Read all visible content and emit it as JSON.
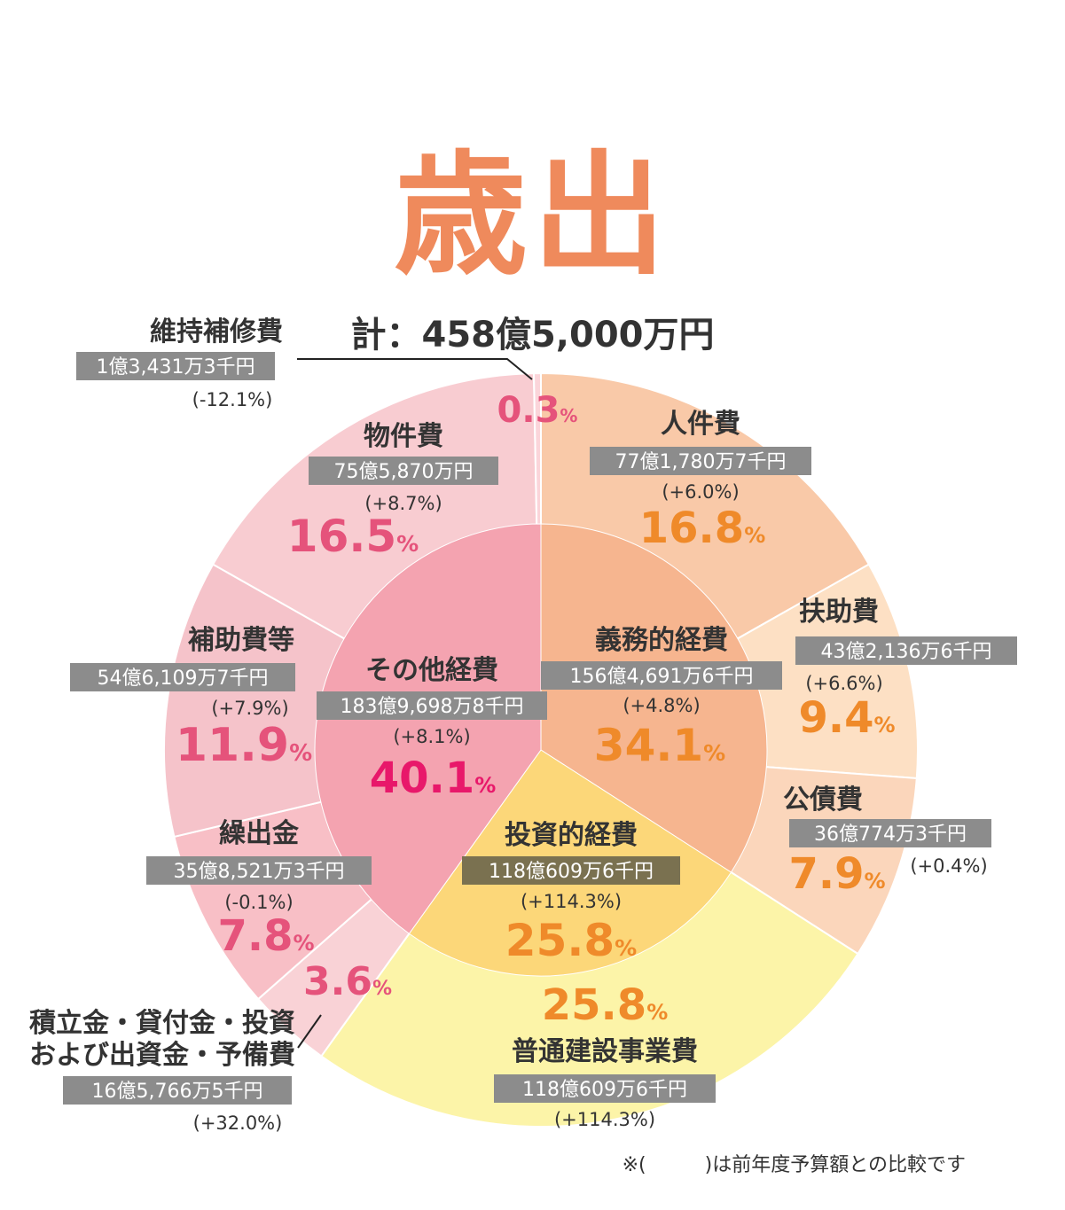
{
  "title": "歳出",
  "total": "計：458億5,000万円",
  "footnote": "※(　　　)は前年度予算額との比較です",
  "colors": {
    "outer": [
      "#f9c9a8",
      "#fde0c4",
      "#fbd6bb",
      "#fcf4a8",
      "#f9d2d6",
      "#f8bfc6",
      "#f5c3ca",
      "#f8ccd1",
      "#fbd5da"
    ],
    "inner": [
      "#f6b58f",
      "#fcd779",
      "#f4a3b0"
    ],
    "pct_orange": "#ef8a2a",
    "pct_pink": "#e5537b",
    "pct_magenta": "#e8186a",
    "amount_bg": "#8c8c8c",
    "amount_bg_dark": "#7a7150"
  },
  "chart_data": {
    "type": "pie",
    "title": "歳出",
    "total": "計：458億5,000万円",
    "outer": [
      {
        "name": "人件費",
        "amount": "77億1,780万7千円",
        "change": "(+6.0%)",
        "percent": 16.8,
        "label": "16.8"
      },
      {
        "name": "扶助費",
        "amount": "43億2,136万6千円",
        "change": "(+6.6%)",
        "percent": 9.4,
        "label": "9.4"
      },
      {
        "name": "公債費",
        "amount": "36億774万3千円",
        "change": "(+0.4%)",
        "percent": 7.9,
        "label": "7.9"
      },
      {
        "name": "普通建設事業費",
        "amount": "118億609万6千円",
        "change": "(+114.3%)",
        "percent": 25.8,
        "label": "25.8"
      },
      {
        "name": "積立金・貸付金・投資\nおよび出資金・予備費",
        "amount": "16億5,766万5千円",
        "change": "(+32.0%)",
        "percent": 3.6,
        "label": "3.6"
      },
      {
        "name": "繰出金",
        "amount": "35億8,521万3千円",
        "change": "(-0.1%)",
        "percent": 7.8,
        "label": "7.8"
      },
      {
        "name": "補助費等",
        "amount": "54億6,109万7千円",
        "change": "(+7.9%)",
        "percent": 11.9,
        "label": "11.9"
      },
      {
        "name": "物件費",
        "amount": "75億5,870万円",
        "change": "(+8.7%)",
        "percent": 16.5,
        "label": "16.5"
      },
      {
        "name": "維持補修費",
        "amount": "1億3,431万3千円",
        "change": "(-12.1%)",
        "percent": 0.3,
        "label": "0.3"
      }
    ],
    "inner": [
      {
        "name": "義務的経費",
        "amount": "156億4,691万6千円",
        "change": "(+4.8%)",
        "percent": 34.1,
        "label": "34.1"
      },
      {
        "name": "投資的経費",
        "amount": "118億609万6千円",
        "change": "(+114.3%)",
        "percent": 25.8,
        "label": "25.8"
      },
      {
        "name": "その他経費",
        "amount": "183億9,698万8千円",
        "change": "(+8.1%)",
        "percent": 40.1,
        "label": "40.1"
      }
    ],
    "percent_unit": "%"
  }
}
